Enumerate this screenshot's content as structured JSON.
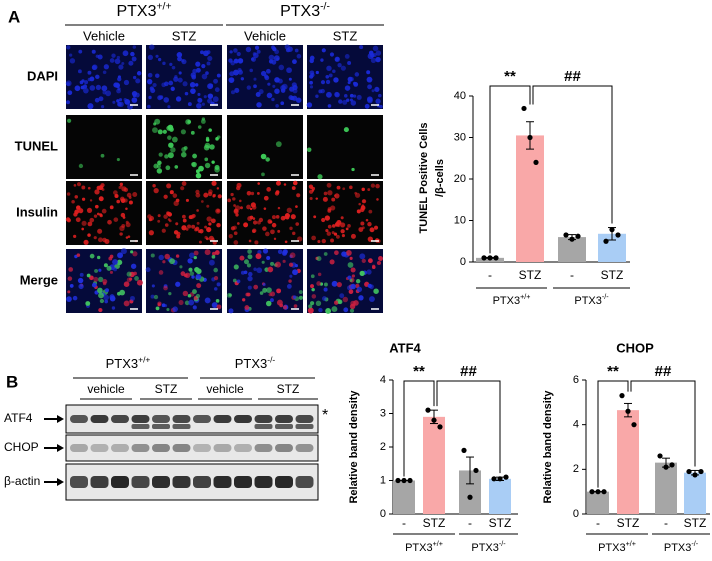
{
  "panel_a": {
    "label": "A",
    "groups": [
      {
        "base": "PTX3",
        "sup": "+/+"
      },
      {
        "base": "PTX3",
        "sup": "-/-"
      }
    ],
    "columns": [
      "Vehicle",
      "STZ",
      "Vehicle",
      "STZ"
    ],
    "rows": [
      "DAPI",
      "TUNEL",
      "Insulin",
      "Merge"
    ]
  },
  "panel_b": {
    "label": "B",
    "groups": [
      {
        "base": "PTX3",
        "sup": "+/+"
      },
      {
        "base": "PTX3",
        "sup": "-/-"
      }
    ],
    "columns": [
      "vehicle",
      "STZ",
      "vehicle",
      "STZ"
    ],
    "rows": [
      "ATF4",
      "CHOP",
      "β-actin"
    ],
    "note": "*"
  },
  "chart_data": [
    {
      "type": "bar",
      "ylabel": [
        "TUNEL Positive Cells",
        "/β-cells"
      ],
      "categories": [
        "-",
        "STZ",
        "-",
        "STZ"
      ],
      "groups": [
        {
          "base": "PTX3",
          "sup": "+/+"
        },
        {
          "base": "PTX3",
          "sup": "-/-"
        }
      ],
      "values": [
        1,
        30.5,
        6,
        6.8
      ],
      "errors": [
        0.1,
        3.3,
        0.6,
        1.5
      ],
      "points": [
        [
          1,
          1,
          1
        ],
        [
          37,
          30,
          24
        ],
        [
          6.5,
          5.5,
          6.2
        ],
        [
          5,
          7.8,
          6.5
        ]
      ],
      "colors": [
        "#a6a6a6",
        "#f9a8a8",
        "#a6a6a6",
        "#a9cdf5"
      ],
      "ylim": [
        0,
        40
      ],
      "yticks": [
        0,
        10,
        20,
        30,
        40
      ],
      "annotations": [
        "**",
        "##"
      ]
    },
    {
      "type": "bar",
      "title": "ATF4",
      "ylabel": [
        "Relative band density"
      ],
      "categories": [
        "-",
        "STZ",
        "-",
        "STZ"
      ],
      "groups": [
        {
          "base": "PTX3",
          "sup": "+/+"
        },
        {
          "base": "PTX3",
          "sup": "-/-"
        }
      ],
      "values": [
        1,
        2.9,
        1.3,
        1.05
      ],
      "errors": [
        0,
        0.2,
        0.4,
        0.05
      ],
      "points": [
        [
          1,
          1,
          1
        ],
        [
          3.1,
          2.8,
          2.6
        ],
        [
          1.9,
          0.5,
          1.3
        ],
        [
          1.05,
          1.05,
          1.1
        ]
      ],
      "colors": [
        "#a6a6a6",
        "#f9a8a8",
        "#a6a6a6",
        "#a9cdf5"
      ],
      "ylim": [
        0,
        4
      ],
      "yticks": [
        0,
        1,
        2,
        3,
        4
      ],
      "annotations": [
        "**",
        "##"
      ]
    },
    {
      "type": "bar",
      "title": "CHOP",
      "ylabel": [
        "Relative band density"
      ],
      "categories": [
        "-",
        "STZ",
        "-",
        "STZ"
      ],
      "groups": [
        {
          "base": "PTX3",
          "sup": "+/+"
        },
        {
          "base": "PTX3",
          "sup": "-/-"
        }
      ],
      "values": [
        1,
        4.65,
        2.3,
        1.85
      ],
      "errors": [
        0,
        0.3,
        0.2,
        0.1
      ],
      "points": [
        [
          1,
          1,
          1
        ],
        [
          5.3,
          4.6,
          4.0
        ],
        [
          2.6,
          2.1,
          2.2
        ],
        [
          1.9,
          1.75,
          1.9
        ]
      ],
      "colors": [
        "#a6a6a6",
        "#f9a8a8",
        "#a6a6a6",
        "#a9cdf5"
      ],
      "ylim": [
        0,
        6
      ],
      "yticks": [
        0,
        2,
        4,
        6
      ],
      "annotations": [
        "**",
        "##"
      ]
    }
  ]
}
